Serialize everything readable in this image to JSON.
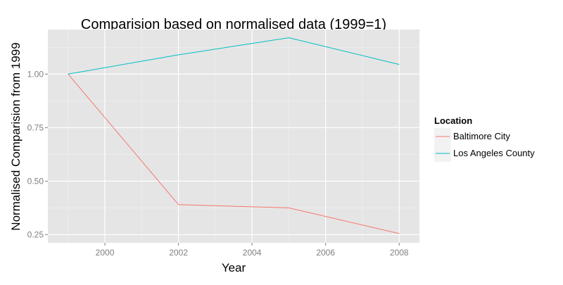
{
  "chart_data": {
    "type": "line",
    "title": "Comparision based on normalised data (1999=1)",
    "xlabel": "Year",
    "ylabel": "Normalised Comparision from 1999",
    "xlim": [
      1998.45,
      2008.55
    ],
    "ylim": [
      0.212,
      1.208
    ],
    "x_ticks": [
      2000,
      2002,
      2004,
      2006,
      2008
    ],
    "x_tick_labels": [
      "2000",
      "2002",
      "2004",
      "2006",
      "2008"
    ],
    "y_ticks": [
      0.25,
      0.5,
      0.75,
      1.0
    ],
    "y_tick_labels": [
      "0.25",
      "0.50",
      "0.75",
      "1.00"
    ],
    "grid": true,
    "legend": {
      "title": "Location",
      "position": "right"
    },
    "x": [
      1999,
      2002,
      2005,
      2008
    ],
    "series": [
      {
        "name": "Baltimore City",
        "color": "#F8766D",
        "values": [
          1.0,
          0.39,
          0.375,
          0.255
        ]
      },
      {
        "name": "Los Angeles County",
        "color": "#00BFC4",
        "values": [
          1.0,
          1.09,
          1.17,
          1.045
        ]
      }
    ]
  },
  "colors": {
    "panel_background": "#E5E5E5",
    "major_grid": "#FFFFFF",
    "minor_grid": "#F2F2F2",
    "tick_label": "#7F7F7F",
    "text": "#000000",
    "legend_key_background": "#F2F2F2"
  }
}
